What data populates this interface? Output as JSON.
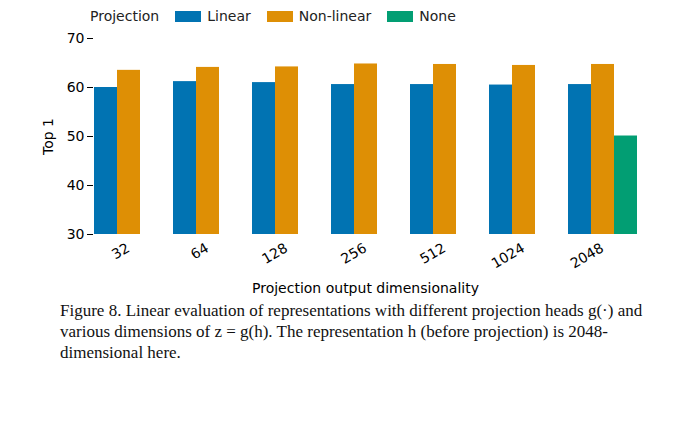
{
  "chart_data": {
    "type": "bar",
    "x_label": "Projection output dimensionality",
    "y_label": "Top 1",
    "legend_title": "Projection",
    "caption": "Figure 8. Linear evaluation of representations with different projection heads g(·) and various dimensions of z = g(h). The representation h (before projection) is 2048-dimensional here.",
    "categories": [
      "32",
      "64",
      "128",
      "256",
      "512",
      "1024",
      "2048"
    ],
    "series": [
      {
        "name": "Linear",
        "color": "#0173b2",
        "values": [
          60.0,
          61.2,
          61.0,
          60.6,
          60.6,
          60.5,
          60.6
        ]
      },
      {
        "name": "Non-linear",
        "color": "#de8f05",
        "values": [
          63.5,
          64.1,
          64.2,
          64.8,
          64.7,
          64.5,
          64.7
        ]
      },
      {
        "name": "None",
        "color": "#029e73",
        "values": [
          null,
          null,
          null,
          null,
          null,
          null,
          50.1
        ]
      }
    ],
    "ylim": [
      30,
      70
    ],
    "yticks": [
      30,
      40,
      50,
      60,
      70
    ],
    "grid": false,
    "legend": "top"
  }
}
